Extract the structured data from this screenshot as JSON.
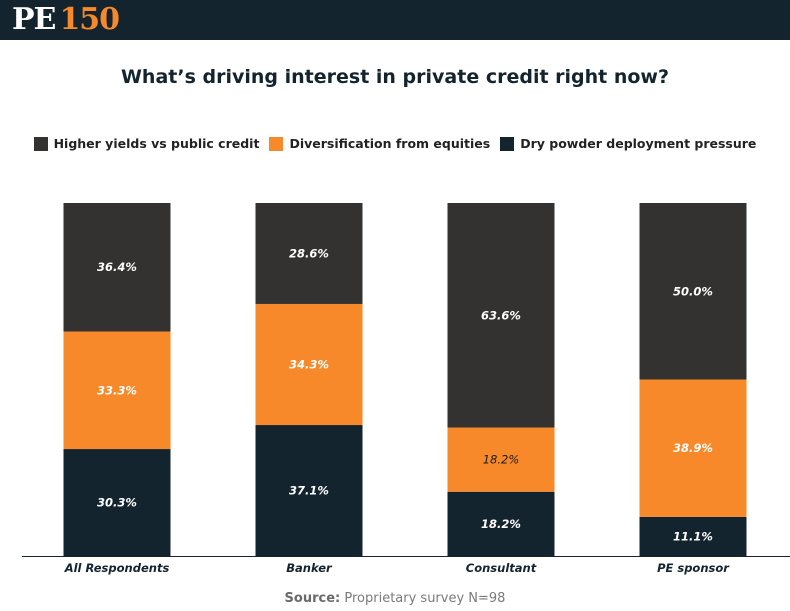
{
  "header": {
    "logo_letters": "PE",
    "logo_number": "150"
  },
  "chart_data": {
    "type": "bar",
    "stacked": true,
    "percent_stacked": true,
    "title": "What’s driving interest in private credit right now?",
    "xlabel": "",
    "ylabel": "",
    "ylim": [
      0,
      100
    ],
    "grid": false,
    "legend_position": "top",
    "categories": [
      "All Respondents",
      "Banker",
      "Consultant",
      "PE sponsor"
    ],
    "series": [
      {
        "name": "Higher yields vs public credit",
        "color": "#333230",
        "values": [
          36.4,
          28.6,
          63.6,
          50.0
        ],
        "labels": [
          "36.4%",
          "28.6%",
          "63.6%",
          "50.0%"
        ]
      },
      {
        "name": "Diversification from equities",
        "color": "#f7892a",
        "values": [
          33.3,
          34.3,
          18.2,
          38.9
        ],
        "labels": [
          "33.3%",
          "34.3%",
          "18.2%",
          "38.9%"
        ]
      },
      {
        "name": "Dry powder deployment pressure",
        "color": "#14242f",
        "values": [
          30.3,
          37.1,
          18.2,
          11.1
        ],
        "labels": [
          "30.3%",
          "37.1%",
          "18.2%",
          "11.1%"
        ]
      }
    ],
    "stack_order_bottom_to_top": [
      2,
      1,
      0
    ]
  },
  "source": {
    "label": "Source:",
    "text": "Proprietary survey N=98"
  }
}
